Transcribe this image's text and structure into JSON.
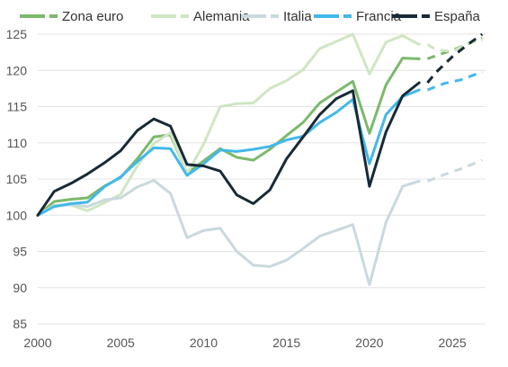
{
  "chart_data": {
    "type": "line",
    "title": "",
    "xlabel": "",
    "ylabel": "",
    "xlim": [
      2000,
      2027
    ],
    "ylim": [
      85,
      126
    ],
    "xticks": [
      2000,
      2005,
      2010,
      2015,
      2020,
      2025
    ],
    "yticks": [
      85,
      90,
      95,
      100,
      105,
      110,
      115,
      120,
      125
    ],
    "grid": "horizontal",
    "legend": "top",
    "projection_start": 2023.5,
    "series": [
      {
        "name": "Zona euro",
        "color": "#7bb96b",
        "values": [
          [
            2000,
            100
          ],
          [
            2001,
            101.9
          ],
          [
            2002,
            102.2
          ],
          [
            2003,
            102.4
          ],
          [
            2004,
            104
          ],
          [
            2005,
            105.2
          ],
          [
            2006,
            107.8
          ],
          [
            2007,
            110.8
          ],
          [
            2008,
            111.1
          ],
          [
            2009,
            105.8
          ],
          [
            2010,
            107.5
          ],
          [
            2011,
            109.2
          ],
          [
            2012,
            108
          ],
          [
            2013,
            107.6
          ],
          [
            2014,
            109.1
          ],
          [
            2015,
            111
          ],
          [
            2016,
            112.8
          ],
          [
            2017,
            115.5
          ],
          [
            2018,
            117
          ],
          [
            2019,
            118.5
          ],
          [
            2020,
            111.3
          ],
          [
            2021,
            118
          ],
          [
            2022,
            121.7
          ],
          [
            2023,
            121.6
          ]
        ],
        "projection": [
          [
            2023.5,
            121.6
          ],
          [
            2024.2,
            122.2
          ],
          [
            2025,
            122.8
          ],
          [
            2026,
            123.7
          ],
          [
            2026.8,
            124.5
          ]
        ]
      },
      {
        "name": "Alemania",
        "color": "#cfe6c3",
        "values": [
          [
            2000,
            100
          ],
          [
            2001,
            101.4
          ],
          [
            2002,
            101.4
          ],
          [
            2003,
            100.6
          ],
          [
            2004,
            101.7
          ],
          [
            2005,
            102.9
          ],
          [
            2006,
            106.8
          ],
          [
            2007,
            109.9
          ],
          [
            2008,
            111.4
          ],
          [
            2009,
            105.7
          ],
          [
            2010,
            109.8
          ],
          [
            2011,
            115
          ],
          [
            2012,
            115.4
          ],
          [
            2013,
            115.5
          ],
          [
            2014,
            117.5
          ],
          [
            2015,
            118.6
          ],
          [
            2016,
            120.1
          ],
          [
            2017,
            123
          ],
          [
            2018,
            124
          ],
          [
            2019,
            125
          ],
          [
            2020,
            119.5
          ],
          [
            2021,
            123.9
          ],
          [
            2022,
            124.8
          ],
          [
            2023,
            123.6
          ]
        ],
        "projection": [
          [
            2023.5,
            123.6
          ],
          [
            2024,
            122.9
          ],
          [
            2025,
            122.6
          ],
          [
            2026,
            123.8
          ],
          [
            2026.8,
            124.2
          ]
        ]
      },
      {
        "name": "Italia",
        "color": "#c9d9de",
        "values": [
          [
            2000,
            100
          ],
          [
            2001,
            101.3
          ],
          [
            2002,
            101.5
          ],
          [
            2003,
            101.2
          ],
          [
            2004,
            102.1
          ],
          [
            2005,
            102.4
          ],
          [
            2006,
            103.9
          ],
          [
            2007,
            104.8
          ],
          [
            2008,
            103
          ],
          [
            2009,
            96.9
          ],
          [
            2010,
            97.9
          ],
          [
            2011,
            98.2
          ],
          [
            2012,
            95
          ],
          [
            2013,
            93.1
          ],
          [
            2014,
            92.9
          ],
          [
            2015,
            93.8
          ],
          [
            2016,
            95.4
          ],
          [
            2017,
            97.1
          ],
          [
            2018,
            97.9
          ],
          [
            2019,
            98.7
          ],
          [
            2020,
            90.4
          ],
          [
            2021,
            99
          ],
          [
            2022,
            104
          ],
          [
            2023,
            104.7
          ]
        ],
        "projection": [
          [
            2023.5,
            104.7
          ],
          [
            2024.5,
            105.6
          ],
          [
            2025.5,
            106.4
          ],
          [
            2026.8,
            107.6
          ]
        ]
      },
      {
        "name": "Francia",
        "color": "#43b8ea",
        "values": [
          [
            2000,
            100
          ],
          [
            2001,
            101.2
          ],
          [
            2002,
            101.6
          ],
          [
            2003,
            101.8
          ],
          [
            2004,
            103.9
          ],
          [
            2005,
            105.3
          ],
          [
            2006,
            107.4
          ],
          [
            2007,
            109.3
          ],
          [
            2008,
            109.2
          ],
          [
            2009,
            105.5
          ],
          [
            2010,
            107.1
          ],
          [
            2011,
            109
          ],
          [
            2012,
            108.8
          ],
          [
            2013,
            109.1
          ],
          [
            2014,
            109.5
          ],
          [
            2015,
            110.4
          ],
          [
            2016,
            110.9
          ],
          [
            2017,
            112.8
          ],
          [
            2018,
            114.2
          ],
          [
            2019,
            116
          ],
          [
            2020,
            107.1
          ],
          [
            2021,
            113.9
          ],
          [
            2022,
            116.4
          ],
          [
            2023,
            117.3
          ]
        ],
        "projection": [
          [
            2023.5,
            117.3
          ],
          [
            2024.5,
            118.2
          ],
          [
            2025.5,
            118.7
          ],
          [
            2026.8,
            119.8
          ]
        ]
      },
      {
        "name": "España",
        "color": "#172a36",
        "values": [
          [
            2000,
            100
          ],
          [
            2001,
            103.3
          ],
          [
            2002,
            104.4
          ],
          [
            2003,
            105.7
          ],
          [
            2004,
            107.2
          ],
          [
            2005,
            108.9
          ],
          [
            2006,
            111.7
          ],
          [
            2007,
            113.3
          ],
          [
            2008,
            112.3
          ],
          [
            2009,
            107
          ],
          [
            2010,
            106.8
          ],
          [
            2011,
            106.1
          ],
          [
            2012,
            102.8
          ],
          [
            2013,
            101.6
          ],
          [
            2014,
            103.5
          ],
          [
            2015,
            107.8
          ],
          [
            2016,
            110.8
          ],
          [
            2017,
            113.9
          ],
          [
            2018,
            116.1
          ],
          [
            2019,
            117.2
          ],
          [
            2020,
            104
          ],
          [
            2021,
            111.5
          ],
          [
            2022,
            116.5
          ],
          [
            2023,
            118.3
          ]
        ],
        "projection": [
          [
            2023.5,
            118.3
          ],
          [
            2024,
            119.7
          ],
          [
            2025,
            121.9
          ],
          [
            2026,
            123.7
          ],
          [
            2026.8,
            125
          ]
        ]
      }
    ]
  }
}
